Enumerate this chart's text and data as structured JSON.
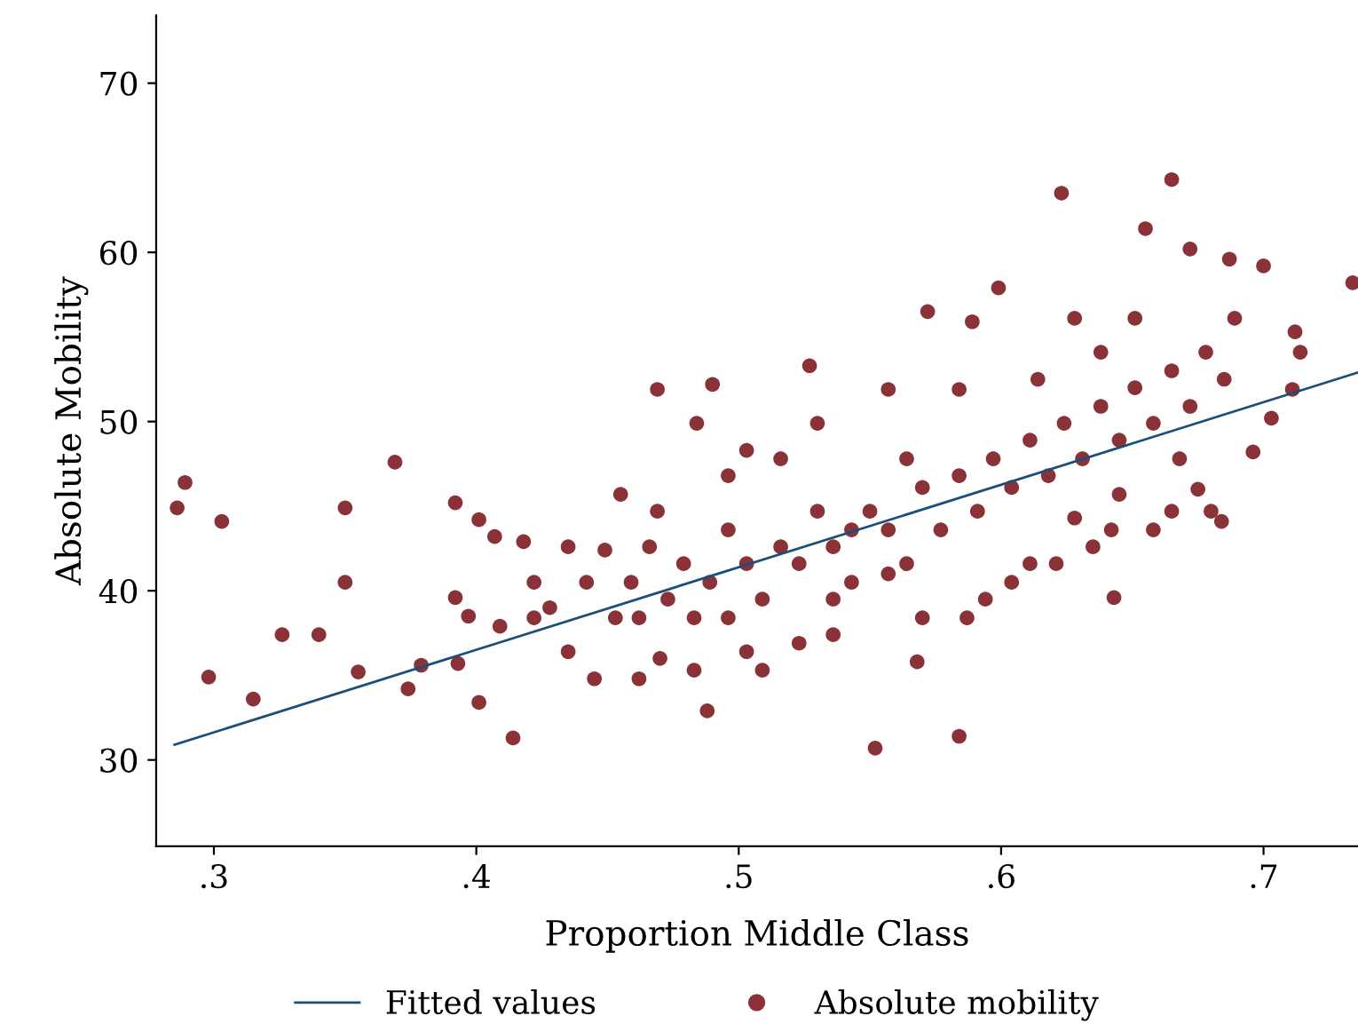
{
  "chart_data": {
    "type": "scatter",
    "xlabel": "Proportion Middle Class",
    "ylabel": "Absolute Mobility",
    "xlim": [
      0.278,
      0.736
    ],
    "ylim": [
      24.9,
      74
    ],
    "xticks": [
      {
        "value": 0.3,
        "label": ".3"
      },
      {
        "value": 0.4,
        "label": ".4"
      },
      {
        "value": 0.5,
        "label": ".5"
      },
      {
        "value": 0.6,
        "label": ".6"
      },
      {
        "value": 0.7,
        "label": ".7"
      }
    ],
    "yticks": [
      30,
      40,
      50,
      60,
      70
    ],
    "grid": false,
    "legend": "bottom",
    "series": [
      {
        "name": "Fitted values",
        "type": "line",
        "color": "#1a4f7a",
        "marker": "none",
        "line_style": "solid",
        "x": [
          0.285,
          0.736
        ],
        "values": [
          30.9,
          52.9
        ]
      },
      {
        "name": "Absolute mobility",
        "color": "#8b3239",
        "marker": "circle",
        "x": [
          0.286,
          0.289,
          0.303,
          0.298,
          0.315,
          0.326,
          0.34,
          0.35,
          0.35,
          0.355,
          0.369,
          0.374,
          0.379,
          0.392,
          0.392,
          0.393,
          0.397,
          0.401,
          0.401,
          0.407,
          0.414,
          0.418,
          0.422,
          0.409,
          0.449,
          0.455,
          0.462,
          0.469,
          0.47,
          0.484,
          0.488,
          0.49,
          0.496,
          0.503,
          0.516,
          0.523,
          0.527,
          0.536,
          0.543,
          0.552,
          0.557,
          0.564,
          0.568,
          0.572,
          0.584,
          0.589,
          0.599,
          0.604,
          0.623,
          0.628,
          0.643,
          0.645,
          0.665,
          0.655,
          0.672,
          0.687,
          0.7,
          0.734,
          0.712,
          0.714,
          0.711,
          0.703,
          0.696,
          0.68,
          0.684,
          0.665,
          0.675,
          0.642,
          0.628,
          0.435,
          0.442,
          0.453,
          0.459,
          0.466,
          0.473,
          0.479,
          0.483,
          0.489,
          0.496,
          0.503,
          0.509,
          0.516,
          0.523,
          0.53,
          0.536,
          0.543,
          0.55,
          0.557,
          0.564,
          0.57,
          0.577,
          0.584,
          0.591,
          0.597,
          0.604,
          0.611,
          0.618,
          0.624,
          0.631,
          0.638,
          0.645,
          0.651,
          0.658,
          0.665,
          0.672,
          0.678,
          0.685,
          0.689,
          0.651,
          0.638,
          0.614,
          0.445,
          0.462,
          0.509,
          0.536,
          0.57,
          0.594,
          0.621,
          0.428,
          0.422,
          0.435,
          0.469,
          0.496,
          0.53,
          0.557,
          0.584,
          0.483,
          0.503,
          0.587,
          0.611,
          0.635,
          0.658,
          0.668
        ],
        "values": [
          44.9,
          46.4,
          44.1,
          34.9,
          33.6,
          37.4,
          37.4,
          44.9,
          40.5,
          35.2,
          47.6,
          34.2,
          35.6,
          39.6,
          45.2,
          35.7,
          38.5,
          33.4,
          44.2,
          43.2,
          31.3,
          42.9,
          38.4,
          37.9,
          42.4,
          45.7,
          38.4,
          51.9,
          36.0,
          49.9,
          32.9,
          52.2,
          43.6,
          48.3,
          47.8,
          36.9,
          53.3,
          39.5,
          43.6,
          30.7,
          41.0,
          47.8,
          35.8,
          56.5,
          31.4,
          55.9,
          57.9,
          40.5,
          63.5,
          56.1,
          39.6,
          45.7,
          64.3,
          61.4,
          60.2,
          59.6,
          59.2,
          58.2,
          55.3,
          54.1,
          51.9,
          50.2,
          48.2,
          44.7,
          44.1,
          44.7,
          46.0,
          43.6,
          44.3,
          36.4,
          40.5,
          38.4,
          40.5,
          42.6,
          39.5,
          41.6,
          38.4,
          40.5,
          38.4,
          41.6,
          39.5,
          42.6,
          41.6,
          44.7,
          42.6,
          40.5,
          44.7,
          43.6,
          41.6,
          46.1,
          43.6,
          46.8,
          44.7,
          47.8,
          46.1,
          48.9,
          46.8,
          49.9,
          47.8,
          50.9,
          48.9,
          52.0,
          49.9,
          53.0,
          50.9,
          54.1,
          52.5,
          56.1,
          56.1,
          54.1,
          52.5,
          34.8,
          34.8,
          35.3,
          37.4,
          38.4,
          39.5,
          41.6,
          39.0,
          40.5,
          42.6,
          44.7,
          46.8,
          49.9,
          51.9,
          51.9,
          35.3,
          36.4,
          38.4,
          41.6,
          42.6,
          43.6,
          47.8
        ]
      }
    ]
  }
}
